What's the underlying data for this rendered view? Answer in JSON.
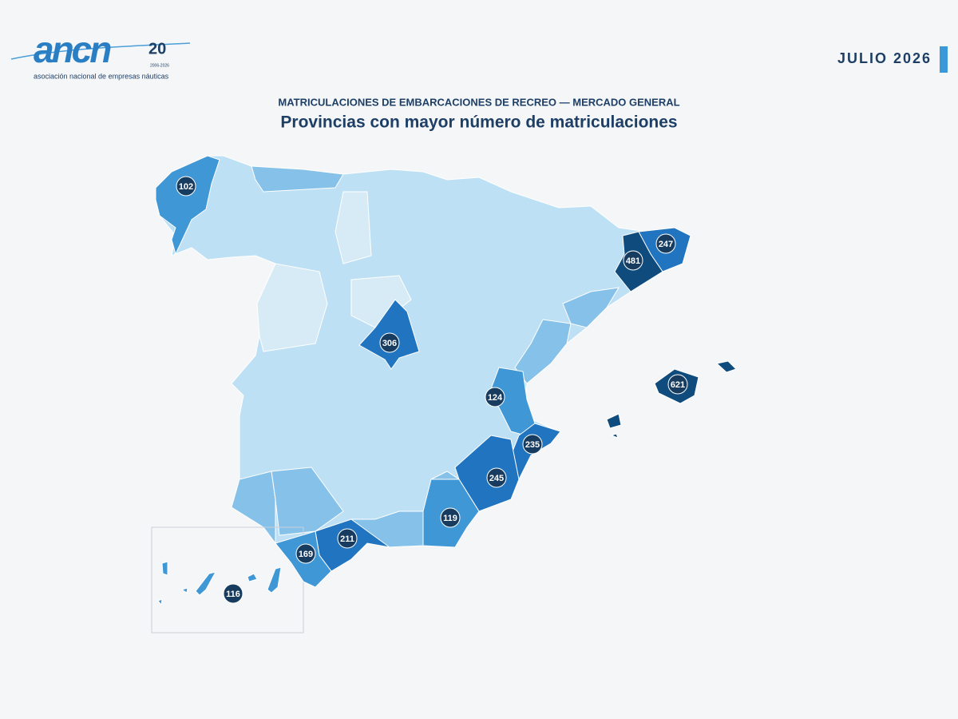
{
  "header": {
    "logo_text": "ancn",
    "logo_badge": "20",
    "logo_years": "2006-2026",
    "logo_subtitle": "asociación nacional de empresas náuticas",
    "period": "JULIO 2026"
  },
  "chart_data": {
    "type": "choropleth",
    "subtitle": "MATRICULACIONES DE EMBARCACIONES DE RECREO — MERCADO GENERAL",
    "title": "Provincias con mayor número de matriculaciones",
    "values": [
      102,
      247,
      481,
      306,
      621,
      124,
      235,
      245,
      119,
      211,
      169,
      116
    ],
    "colors": [
      "#3f97d6",
      "#2174bf",
      "#0f4c7d",
      "#2174bf",
      "#0f4c7d",
      "#3f97d6",
      "#2174bf",
      "#2174bf",
      "#3f97d6",
      "#2174bf",
      "#3f97d6",
      "#3f97d6"
    ],
    "marker_color": "#173c60"
  }
}
